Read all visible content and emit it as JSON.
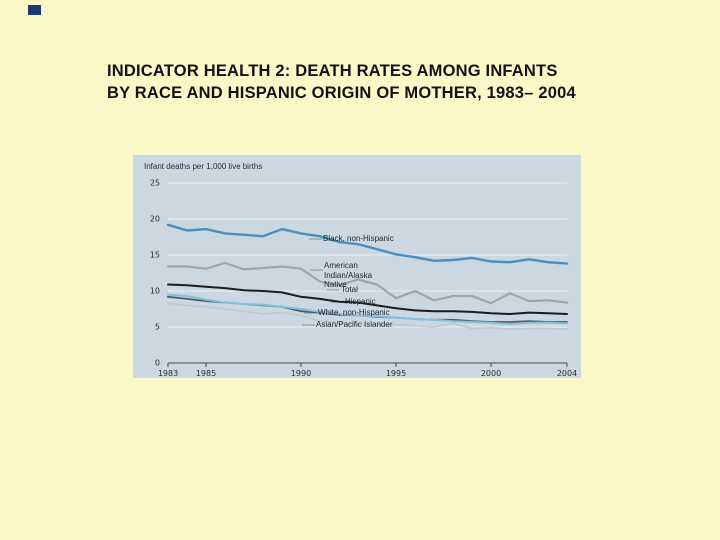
{
  "slide": {
    "title_line1": "INDICATOR HEALTH 2: DEATH RATES AMONG INFANTS",
    "title_line2": "BY RACE AND HISPANIC ORIGIN OF MOTHER, 1983– 2004"
  },
  "chart_data": {
    "type": "line",
    "title": "Infant deaths per 1,000 live births",
    "xlabel": "",
    "ylabel": "Infant deaths per 1,000 live births",
    "ylim": [
      0,
      25
    ],
    "yticks": [
      0,
      5,
      10,
      15,
      20,
      25
    ],
    "xticks": [
      1983,
      1985,
      1990,
      1995,
      2000,
      2004
    ],
    "grid": true,
    "legend_position": "inline-annotations",
    "x": [
      1983,
      1984,
      1985,
      1986,
      1987,
      1988,
      1989,
      1990,
      1991,
      1992,
      1993,
      1994,
      1995,
      1996,
      1997,
      1998,
      1999,
      2000,
      2001,
      2002,
      2003,
      2004
    ],
    "series": [
      {
        "name": "Black, non-Hispanic",
        "color": "#4a8fc0",
        "values": [
          19.2,
          18.4,
          18.6,
          18.0,
          17.8,
          17.6,
          18.6,
          18.0,
          17.6,
          16.8,
          16.5,
          15.8,
          15.1,
          14.7,
          14.2,
          14.3,
          14.6,
          14.1,
          14.0,
          14.4,
          14.0,
          13.8
        ]
      },
      {
        "name": "American Indian/Alaska Native",
        "color": "#9fa6ab",
        "values": [
          13.4,
          13.4,
          13.1,
          13.9,
          13.0,
          13.2,
          13.4,
          13.1,
          11.3,
          10.8,
          11.6,
          10.9,
          9.0,
          10.0,
          8.7,
          9.3,
          9.3,
          8.3,
          9.7,
          8.6,
          8.7,
          8.4
        ]
      },
      {
        "name": "Total",
        "color": "#1c1c1c",
        "values": [
          10.9,
          10.8,
          10.6,
          10.4,
          10.1,
          10.0,
          9.8,
          9.2,
          8.9,
          8.5,
          8.4,
          8.0,
          7.6,
          7.3,
          7.2,
          7.2,
          7.1,
          6.9,
          6.8,
          7.0,
          6.9,
          6.8
        ]
      },
      {
        "name": "Hispanic",
        "color": "#85bfdc",
        "values": [
          9.5,
          9.3,
          8.8,
          8.4,
          8.2,
          8.1,
          7.8,
          7.5,
          7.1,
          6.8,
          6.6,
          6.5,
          6.3,
          6.1,
          6.0,
          5.8,
          5.7,
          5.6,
          5.4,
          5.6,
          5.6,
          5.5
        ]
      },
      {
        "name": "White, non-Hispanic",
        "color": "#515d66",
        "values": [
          9.2,
          8.9,
          8.6,
          8.4,
          8.2,
          8.0,
          7.8,
          7.2,
          7.0,
          6.7,
          6.6,
          6.4,
          6.3,
          6.1,
          6.0,
          6.0,
          5.8,
          5.7,
          5.7,
          5.8,
          5.7,
          5.7
        ]
      },
      {
        "name": "Asian/Pacific Islander",
        "color": "#c2c9ce",
        "values": [
          8.3,
          8.0,
          7.8,
          7.5,
          7.2,
          6.8,
          7.0,
          6.6,
          5.8,
          5.6,
          5.4,
          5.3,
          5.3,
          5.2,
          5.0,
          5.5,
          4.8,
          4.9,
          4.7,
          4.8,
          4.8,
          4.7
        ]
      }
    ]
  }
}
